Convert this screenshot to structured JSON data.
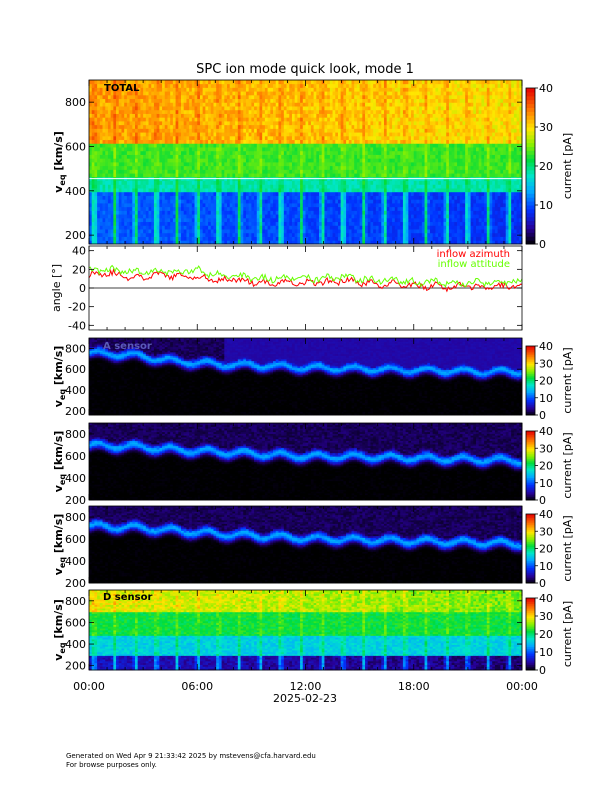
{
  "footer": {
    "line1": "Generated on Wed Apr  9 21:33:42 2025 by mstevens@cfa.harvard.edu",
    "line2": "For browse purposes only."
  },
  "chart_data": [
    {
      "type": "heatmap",
      "title": "SPC ion mode quick look, mode 1",
      "label": "TOTAL",
      "ylabel": "v_eq [km/s]",
      "ylabel_main": "v",
      "ylabel_sub": "eq",
      "ylabel_unit": "[km/s]",
      "ylim": [
        160,
        900
      ],
      "yticks": [
        200,
        400,
        600,
        800
      ],
      "colorbar": {
        "label": "current [pA]",
        "range": [
          0,
          40
        ],
        "ticks": [
          0,
          10,
          20,
          30,
          40
        ]
      },
      "xticks": [
        "00:00",
        "06:00",
        "12:00",
        "18:00",
        "00:00"
      ],
      "date": "2025-02-23",
      "xlim_hours": [
        0,
        24
      ]
    },
    {
      "type": "line",
      "ylabel": "angle [°]",
      "ylim": [
        -45,
        45
      ],
      "yticks": [
        -40,
        -20,
        0,
        20,
        40
      ],
      "xlim_hours": [
        0,
        24
      ],
      "series": [
        {
          "name": "inflow azimuth",
          "color": "#ff0000",
          "x": [
            0,
            1,
            2,
            3,
            4,
            5,
            6,
            7,
            8,
            9,
            10,
            11,
            12,
            13,
            14,
            15,
            16,
            17,
            18,
            19,
            20,
            21,
            22,
            23,
            24
          ],
          "y": [
            14,
            17,
            12,
            12,
            14,
            12,
            12,
            8,
            10,
            6,
            5,
            7,
            5,
            6,
            8,
            6,
            4,
            4,
            2,
            2,
            1,
            2,
            1,
            2,
            2
          ]
        },
        {
          "name": "inflow attitude",
          "color": "#66ff00",
          "x": [
            0,
            1,
            2,
            3,
            4,
            5,
            6,
            7,
            8,
            9,
            10,
            11,
            12,
            13,
            14,
            15,
            16,
            17,
            18,
            19,
            20,
            21,
            22,
            23,
            24
          ],
          "y": [
            18,
            20,
            17,
            18,
            18,
            18,
            19,
            14,
            14,
            11,
            10,
            12,
            10,
            11,
            12,
            10,
            8,
            9,
            6,
            7,
            5,
            6,
            6,
            7,
            6
          ]
        }
      ]
    },
    {
      "type": "heatmap",
      "label": "A sensor",
      "ylabel_main": "v",
      "ylabel_sub": "eq",
      "ylabel_unit": "[km/s]",
      "ylim": [
        160,
        900
      ],
      "yticks": [
        200,
        400,
        600,
        800
      ],
      "colorbar": {
        "label": "current [pA]",
        "range": [
          0,
          40
        ],
        "ticks": [
          0,
          10,
          20,
          30,
          40
        ]
      },
      "beam_center": [
        760,
        740,
        680,
        650,
        640,
        620,
        610,
        600,
        590,
        580,
        580
      ],
      "beam_hours": [
        0,
        2.4,
        4.8,
        7.2,
        9.6,
        12,
        14.4,
        16.8,
        19.2,
        21.6,
        24
      ]
    },
    {
      "type": "heatmap",
      "label": "",
      "ylabel_main": "v",
      "ylabel_sub": "eq",
      "ylabel_unit": "[km/s]",
      "ylim": [
        200,
        900
      ],
      "yticks": [
        200,
        400,
        600,
        800
      ],
      "colorbar": {
        "label": "current [pA]",
        "range": [
          0,
          40
        ],
        "ticks": [
          0,
          10,
          20,
          30,
          40
        ]
      },
      "beam_center": [
        700,
        690,
        660,
        640,
        620,
        600,
        600,
        590,
        580,
        570,
        560
      ],
      "beam_hours": [
        0,
        2.4,
        4.8,
        7.2,
        9.6,
        12,
        14.4,
        16.8,
        19.2,
        21.6,
        24
      ]
    },
    {
      "type": "heatmap",
      "label": "",
      "ylabel_main": "v",
      "ylabel_sub": "eq",
      "ylabel_unit": "[km/s]",
      "ylim": [
        200,
        900
      ],
      "yticks": [
        200,
        400,
        600,
        800
      ],
      "colorbar": {
        "label": "current [pA]",
        "range": [
          0,
          40
        ],
        "ticks": [
          0,
          10,
          20,
          30,
          40
        ]
      },
      "beam_center": [
        720,
        710,
        680,
        650,
        630,
        610,
        600,
        590,
        580,
        570,
        560
      ],
      "beam_hours": [
        0,
        2.4,
        4.8,
        7.2,
        9.6,
        12,
        14.4,
        16.8,
        19.2,
        21.6,
        24
      ]
    },
    {
      "type": "heatmap",
      "label": "D sensor",
      "ylabel_main": "v",
      "ylabel_sub": "eq",
      "ylabel_unit": "[km/s]",
      "ylim": [
        160,
        900
      ],
      "yticks": [
        200,
        400,
        600,
        800
      ],
      "colorbar": {
        "label": "current [pA]",
        "range": [
          0,
          40
        ],
        "ticks": [
          0,
          10,
          20,
          30,
          40
        ]
      },
      "xticks": [
        "00:00",
        "06:00",
        "12:00",
        "18:00",
        "00:00"
      ],
      "date": "2025-02-23"
    }
  ]
}
